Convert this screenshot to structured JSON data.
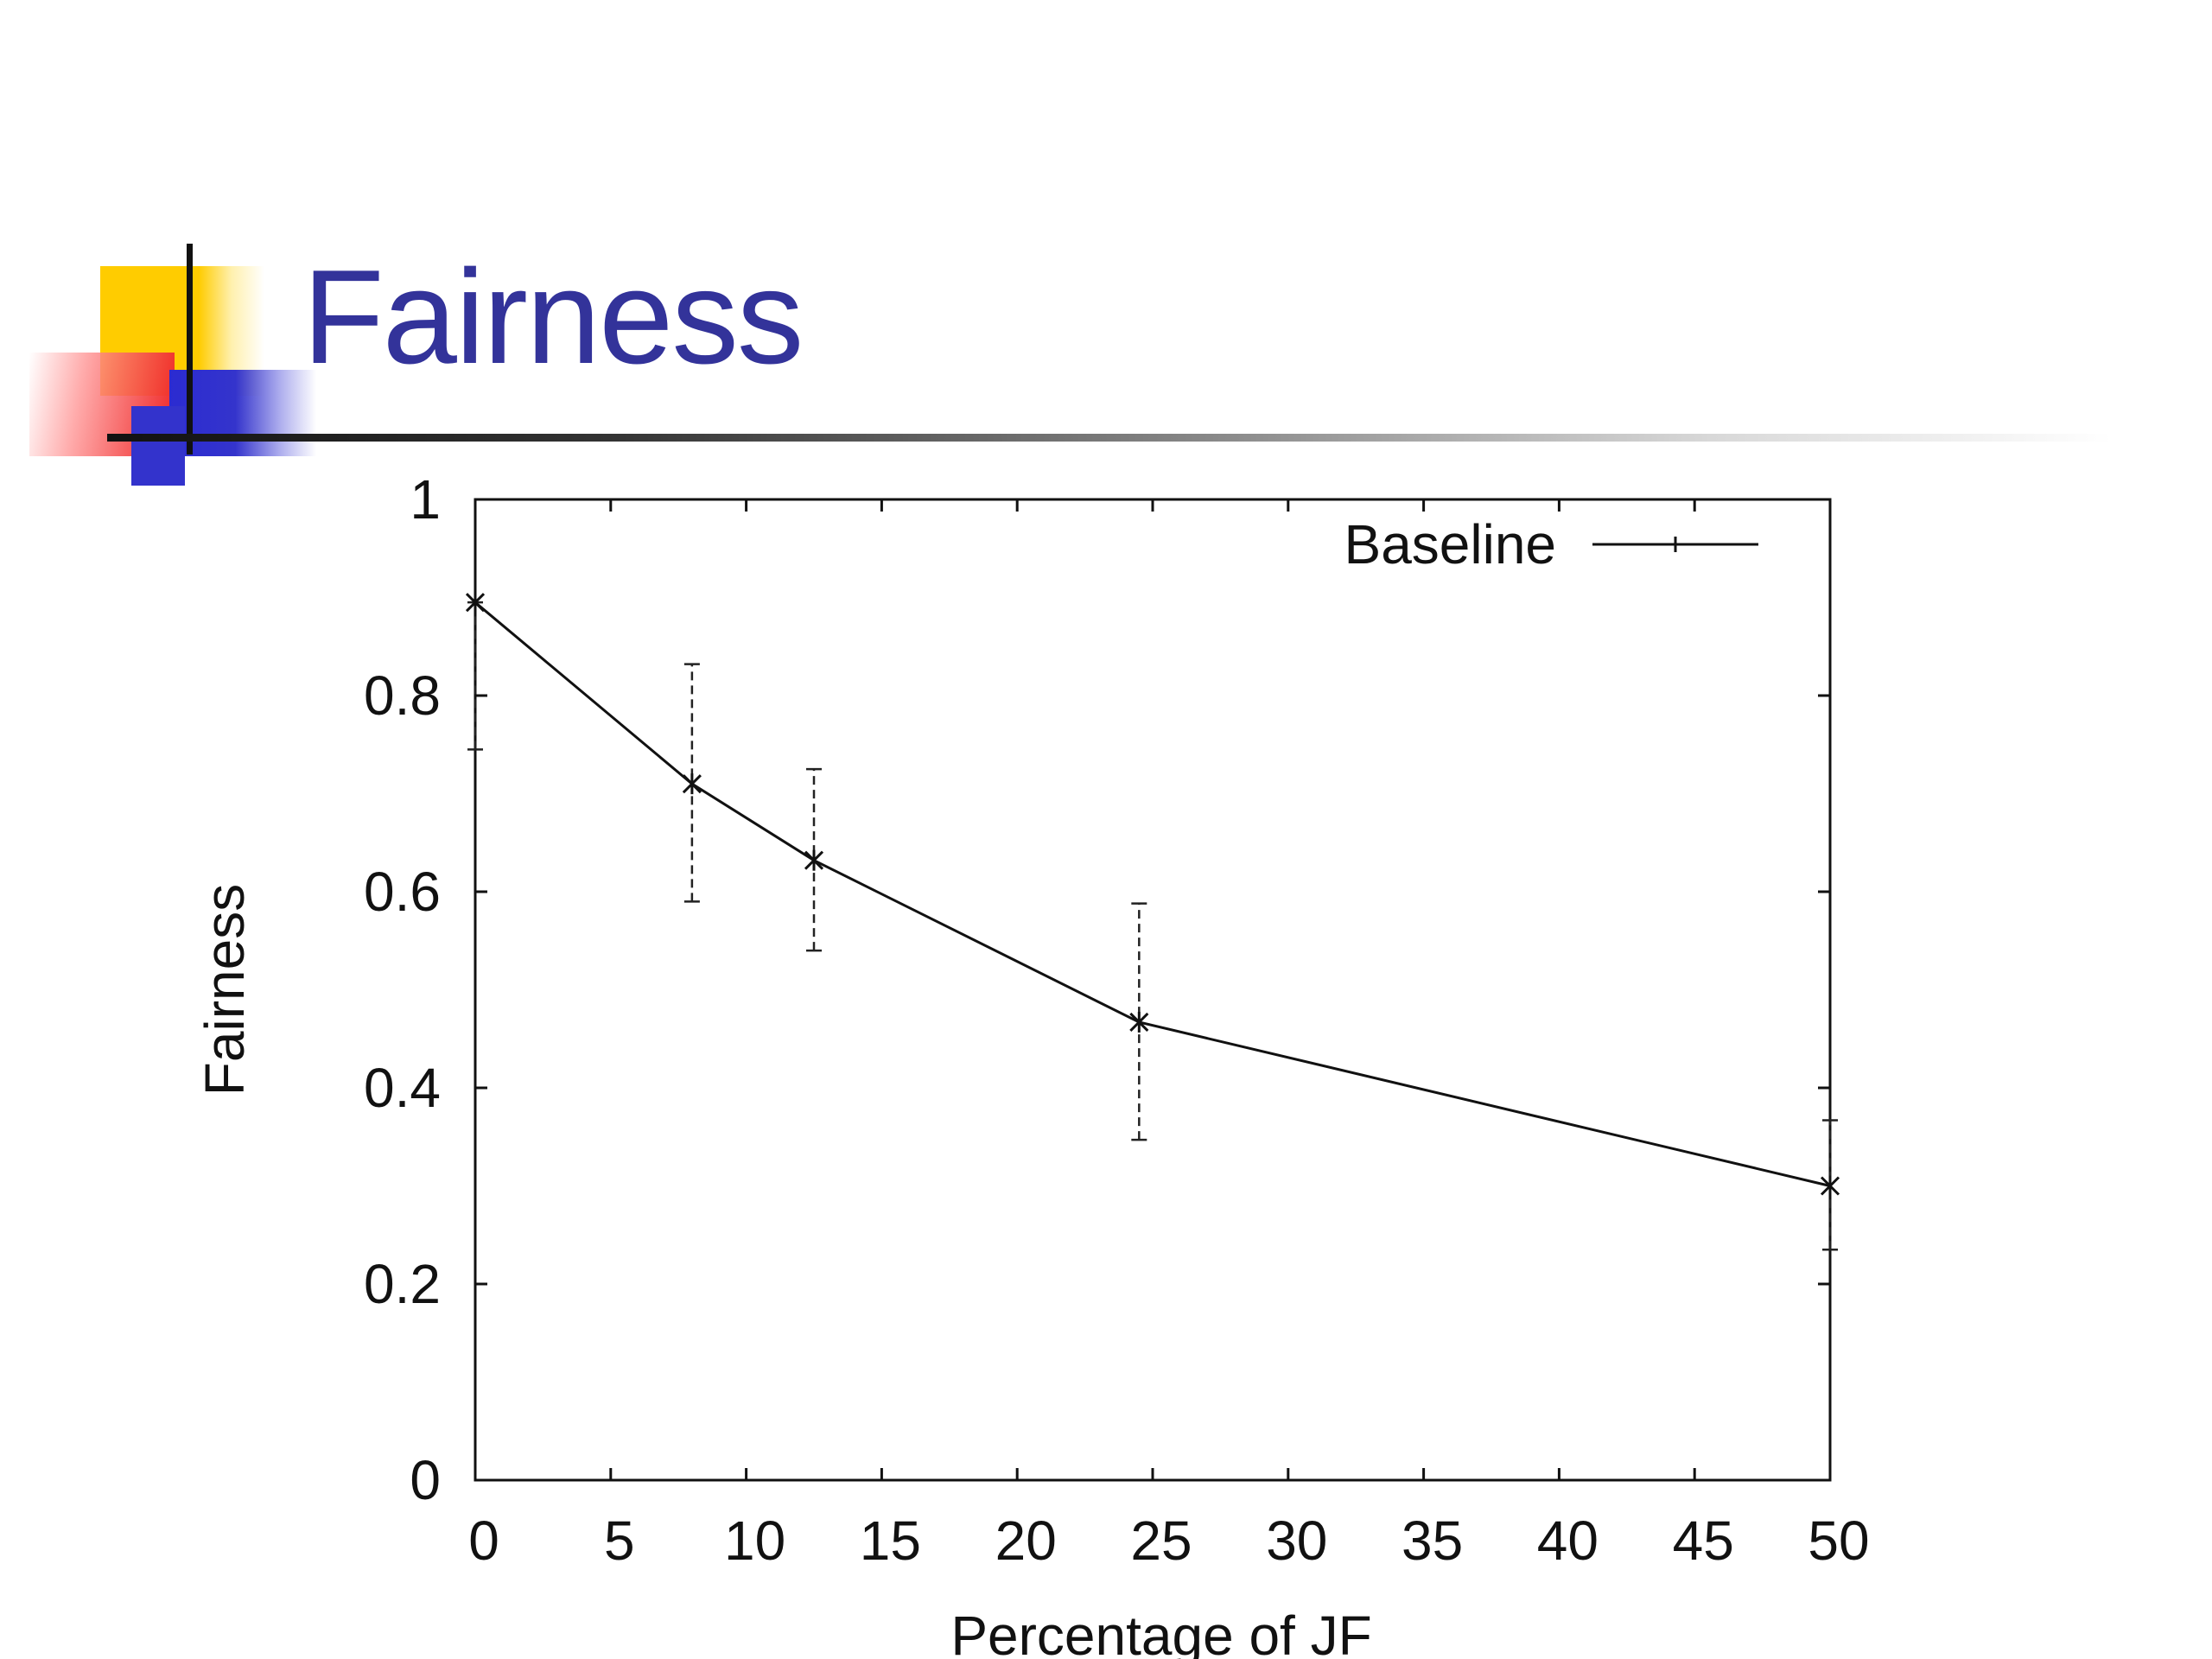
{
  "slide": {
    "title": "Fairness"
  },
  "chart_data": {
    "type": "line",
    "title": "",
    "xlabel": "Percentage of JF",
    "ylabel": "Fairness",
    "xlim": [
      0,
      50
    ],
    "ylim": [
      0,
      1
    ],
    "x_ticks": [
      0,
      5,
      10,
      15,
      20,
      25,
      30,
      35,
      40,
      45,
      50
    ],
    "y_ticks": [
      0,
      0.2,
      0.4,
      0.6,
      0.8,
      1
    ],
    "legend_position": "top-right",
    "grid": false,
    "series": [
      {
        "name": "Baseline",
        "x": [
          0,
          8,
          12.5,
          24.5,
          50
        ],
        "y": [
          0.895,
          0.71,
          0.632,
          0.467,
          0.3
        ],
        "err_low": [
          0.745,
          0.59,
          0.54,
          0.347,
          0.235
        ],
        "err_high": [
          0.895,
          0.832,
          0.725,
          0.588,
          0.367
        ]
      }
    ]
  }
}
